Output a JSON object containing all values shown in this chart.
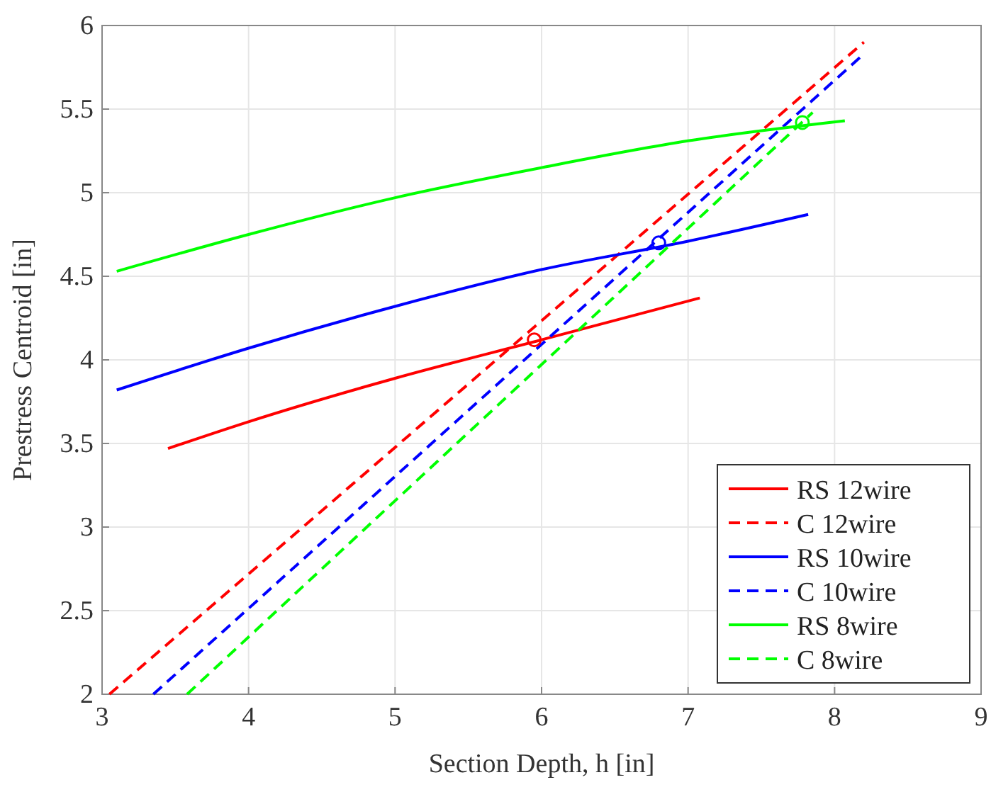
{
  "chart_data": {
    "type": "line",
    "xlabel": "Section Depth, h [in]",
    "ylabel": "Prestress Centroid [in]",
    "xlim": [
      3,
      9
    ],
    "ylim": [
      2,
      6
    ],
    "xticks": [
      3,
      4,
      5,
      6,
      7,
      8,
      9
    ],
    "yticks": [
      2,
      2.5,
      3,
      3.5,
      4,
      4.5,
      5,
      5.5,
      6
    ],
    "grid": true,
    "legend": "bottom right",
    "series": [
      {
        "name": "RS 12wire",
        "color": "#ff0000",
        "line_style": "solid",
        "x": [
          3.45,
          4,
          5,
          6,
          7.08
        ],
        "values": [
          3.47,
          3.63,
          3.89,
          4.12,
          4.37
        ]
      },
      {
        "name": "C 12wire",
        "color": "#ff0000",
        "line_style": "dashed",
        "x": [
          3.05,
          8.2
        ],
        "values": [
          2.0,
          5.9
        ]
      },
      {
        "name": "RS 10wire",
        "color": "#0000ff",
        "line_style": "solid",
        "x": [
          3.1,
          4,
          5,
          6,
          7,
          7.82
        ],
        "values": [
          3.82,
          4.07,
          4.32,
          4.54,
          4.71,
          4.87
        ]
      },
      {
        "name": "C 10wire",
        "color": "#0000ff",
        "line_style": "dashed",
        "x": [
          3.35,
          8.2
        ],
        "values": [
          2.0,
          5.83
        ]
      },
      {
        "name": "RS 8wire",
        "color": "#00ff00",
        "line_style": "solid",
        "x": [
          3.1,
          4,
          5,
          6,
          7,
          8.07
        ],
        "values": [
          4.53,
          4.75,
          4.97,
          5.15,
          5.31,
          5.43
        ]
      },
      {
        "name": "C 8wire",
        "color": "#00ff00",
        "line_style": "dashed",
        "x": [
          3.58,
          7.85
        ],
        "values": [
          2.0,
          5.48
        ]
      },
      {
        "type": "scatter",
        "marker": "circle",
        "color": "#ff0000",
        "x": [
          5.95
        ],
        "values": [
          4.12
        ]
      },
      {
        "type": "scatter",
        "marker": "circle",
        "color": "#0000ff",
        "x": [
          6.8
        ],
        "values": [
          4.7
        ]
      },
      {
        "type": "scatter",
        "marker": "circle",
        "color": "#00ff00",
        "x": [
          7.78
        ],
        "values": [
          5.42
        ]
      }
    ]
  }
}
